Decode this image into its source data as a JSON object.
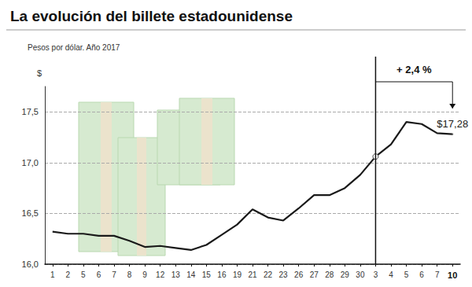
{
  "chart_data": {
    "type": "line",
    "title": "La evolución del billete estadounidense",
    "subtitle": "Pesos por dólar. Año 2017",
    "y_label": "$",
    "categories": [
      "1",
      "2",
      "5",
      "6",
      "7",
      "8",
      "9",
      "12",
      "13",
      "14",
      "15",
      "16",
      "19",
      "21",
      "22",
      "23",
      "26",
      "27",
      "28",
      "29",
      "30",
      "3",
      "4",
      "5",
      "6",
      "7",
      "10"
    ],
    "values": [
      16.32,
      16.3,
      16.3,
      16.28,
      16.28,
      16.23,
      16.17,
      16.18,
      16.16,
      16.14,
      16.19,
      16.29,
      16.39,
      16.54,
      16.46,
      16.43,
      16.55,
      16.68,
      16.68,
      16.75,
      16.88,
      17.06,
      17.18,
      17.4,
      17.38,
      17.29,
      17.28
    ],
    "value_labels": [
      null,
      null,
      null,
      null,
      null,
      null,
      null,
      null,
      null,
      null,
      null,
      null,
      null,
      null,
      null,
      null,
      null,
      null,
      null,
      null,
      null,
      null,
      null,
      null,
      null,
      null,
      "$17,28"
    ],
    "color": "#1a1a1a",
    "ylim": [
      16,
      17.75
    ],
    "yticks": [
      {
        "value": 16,
        "label": "16,0"
      },
      {
        "value": 16.5,
        "label": "16,5"
      },
      {
        "value": 17,
        "label": "17,0"
      },
      {
        "value": 17.5,
        "label": "17,5"
      }
    ],
    "grid": true,
    "annotations": [
      {
        "text": "+ 2,4 %",
        "from": 21,
        "to": 26
      }
    ]
  }
}
